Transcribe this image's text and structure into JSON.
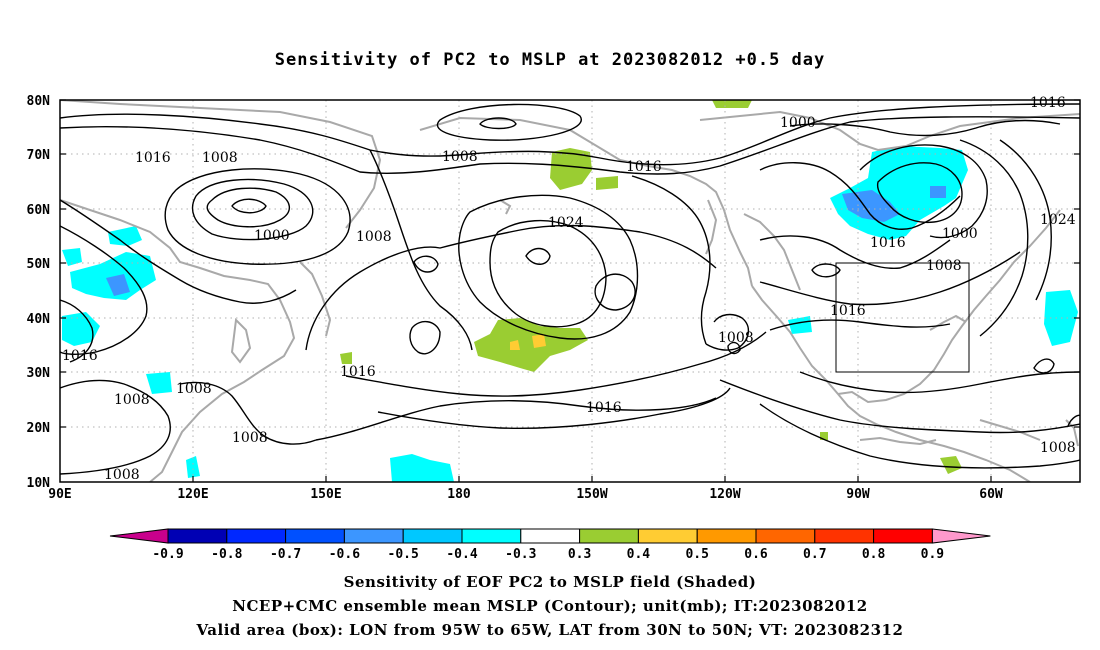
{
  "title": "Sensitivity of PC2 to MSLP at 2023082012 +0.5 day",
  "lat_ticks": [
    "80N",
    "70N",
    "60N",
    "50N",
    "40N",
    "30N",
    "20N",
    "10N"
  ],
  "lon_ticks": [
    "90E",
    "120E",
    "150E",
    "180",
    "150W",
    "120W",
    "90W",
    "60W"
  ],
  "contour_labels": [
    "1016",
    "1016",
    "1008",
    "1008",
    "1016",
    "1000",
    "1000",
    "1008",
    "1024",
    "1016",
    "1000",
    "1024",
    "1016",
    "1008",
    "1016",
    "1008",
    "1016",
    "1008",
    "1008",
    "1008",
    "1016",
    "1008",
    "1008"
  ],
  "colorbar": {
    "labels": [
      "-0.9",
      "-0.8",
      "-0.7",
      "-0.6",
      "-0.5",
      "-0.4",
      "-0.3",
      "0.3",
      "0.4",
      "0.5",
      "0.6",
      "0.7",
      "0.8",
      "0.9"
    ],
    "colors": [
      "#c8008c",
      "#0000b4",
      "#0028ff",
      "#0050ff",
      "#3c96ff",
      "#00c8ff",
      "#00ffff",
      "#ffffff",
      "#9acd32",
      "#ffcc33",
      "#ff9900",
      "#ff6600",
      "#ff3300",
      "#ff0000",
      "#ff99cc"
    ]
  },
  "captions": [
    "Sensitivity of EOF PC2 to MSLP field (Shaded)",
    "NCEP+CMC ensemble mean MSLP (Contour); unit(mb); IT:2023082012",
    "Valid area (box): LON from 95W to 65W, LAT from 30N to 50N; VT: 2023082312"
  ]
}
